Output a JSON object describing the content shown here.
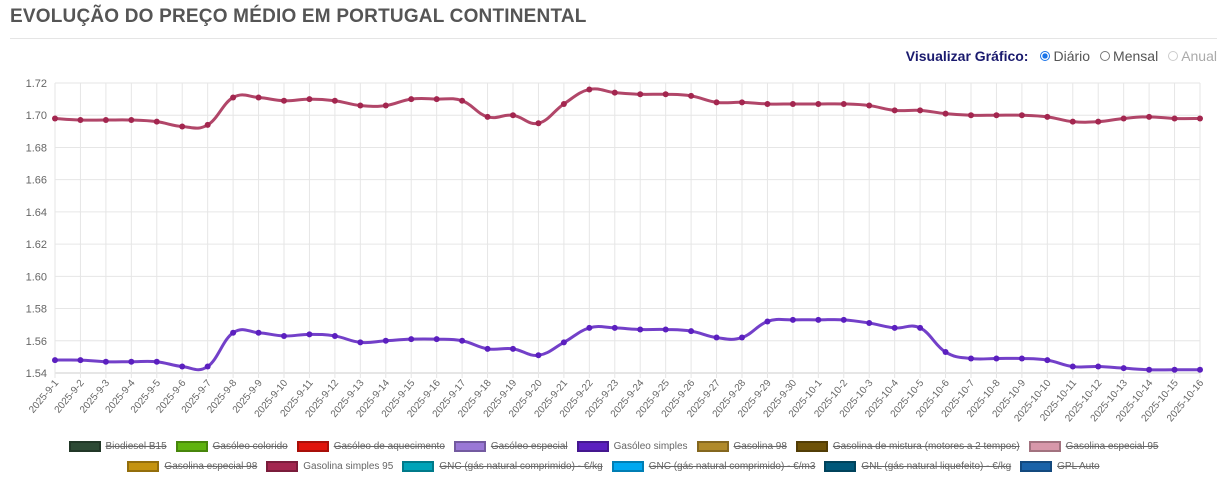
{
  "header": {
    "title": "EVOLUÇÃO DO PREÇO MÉDIO EM PORTUGAL CONTINENTAL"
  },
  "view": {
    "label": "Visualizar Gráfico:",
    "options": [
      {
        "label": "Diário",
        "selected": true,
        "disabled": false
      },
      {
        "label": "Mensal",
        "selected": false,
        "disabled": false
      },
      {
        "label": "Anual",
        "selected": false,
        "disabled": true
      }
    ]
  },
  "chart_data": {
    "type": "line",
    "ylim": [
      1.54,
      1.72
    ],
    "yticks": [
      "1.54",
      "1.56",
      "1.58",
      "1.60",
      "1.62",
      "1.64",
      "1.66",
      "1.68",
      "1.70",
      "1.72"
    ],
    "grid": true,
    "legend_position": "bottom",
    "x": [
      "2025-9-1",
      "2025-9-2",
      "2025-9-3",
      "2025-9-4",
      "2025-9-5",
      "2025-9-6",
      "2025-9-7",
      "2025-9-8",
      "2025-9-9",
      "2025-9-10",
      "2025-9-11",
      "2025-9-12",
      "2025-9-13",
      "2025-9-14",
      "2025-9-15",
      "2025-9-16",
      "2025-9-17",
      "2025-9-18",
      "2025-9-19",
      "2025-9-20",
      "2025-9-21",
      "2025-9-22",
      "2025-9-23",
      "2025-9-24",
      "2025-9-25",
      "2025-9-26",
      "2025-9-27",
      "2025-9-28",
      "2025-9-29",
      "2025-9-30",
      "2025-10-1",
      "2025-10-2",
      "2025-10-3",
      "2025-10-4",
      "2025-10-5",
      "2025-10-6",
      "2025-10-7",
      "2025-10-8",
      "2025-10-9",
      "2025-10-10",
      "2025-10-11",
      "2025-10-12",
      "2025-10-13",
      "2025-10-14",
      "2025-10-15",
      "2025-10-16"
    ],
    "series": [
      {
        "name": "Gasolina simples 95",
        "color": "#a3264f",
        "values": [
          1.698,
          1.697,
          1.697,
          1.697,
          1.696,
          1.693,
          1.694,
          1.711,
          1.711,
          1.709,
          1.71,
          1.709,
          1.706,
          1.706,
          1.71,
          1.71,
          1.709,
          1.699,
          1.7,
          1.695,
          1.707,
          1.716,
          1.714,
          1.713,
          1.713,
          1.712,
          1.708,
          1.708,
          1.707,
          1.707,
          1.707,
          1.707,
          1.706,
          1.703,
          1.703,
          1.701,
          1.7,
          1.7,
          1.7,
          1.699,
          1.696,
          1.696,
          1.698,
          1.699,
          1.698,
          1.698
        ]
      },
      {
        "name": "Gasóleo simples",
        "color": "#5b1fbf",
        "values": [
          1.548,
          1.548,
          1.547,
          1.547,
          1.547,
          1.544,
          1.544,
          1.565,
          1.565,
          1.563,
          1.564,
          1.563,
          1.559,
          1.56,
          1.561,
          1.561,
          1.56,
          1.555,
          1.555,
          1.551,
          1.559,
          1.568,
          1.568,
          1.567,
          1.567,
          1.566,
          1.562,
          1.562,
          1.572,
          1.573,
          1.573,
          1.573,
          1.571,
          1.568,
          1.568,
          1.553,
          1.549,
          1.549,
          1.549,
          1.548,
          1.544,
          1.544,
          1.543,
          1.542,
          1.542,
          1.542
        ]
      }
    ],
    "legend": [
      [
        {
          "name": "Biodiesel B15",
          "color": "#2d4a35",
          "hidden": true
        },
        {
          "name": "Gasóleo colorido",
          "color": "#5fb30f",
          "hidden": true
        },
        {
          "name": "Gasóleo de aquecimento",
          "color": "#e0140c",
          "hidden": true
        },
        {
          "name": "Gasóleo especial",
          "color": "#9a78d6",
          "hidden": true
        },
        {
          "name": "Gasóleo simples",
          "color": "#5b1fbf",
          "hidden": false
        },
        {
          "name": "Gasolina 98",
          "color": "#b08a2a",
          "hidden": true
        },
        {
          "name": "Gasolina de mistura (motores a 2 tempos)",
          "color": "#6e5208",
          "hidden": true
        },
        {
          "name": "Gasolina especial 95",
          "color": "#d898aa",
          "hidden": true
        }
      ],
      [
        {
          "name": "Gasolina especial 98",
          "color": "#c49310",
          "hidden": true
        },
        {
          "name": "Gasolina simples 95",
          "color": "#a3264f",
          "hidden": false
        },
        {
          "name": "GNC (gás natural comprimido) - €/kg",
          "color": "#00a3b8",
          "hidden": true
        },
        {
          "name": "GNC (gás natural comprimido) - €/m3",
          "color": "#00a8f0",
          "hidden": true
        },
        {
          "name": "GNL (gás natural liquefeito) - €/kg",
          "color": "#00587a",
          "hidden": true
        },
        {
          "name": "GPL Auto",
          "color": "#1a62a8",
          "hidden": true
        }
      ]
    ]
  }
}
